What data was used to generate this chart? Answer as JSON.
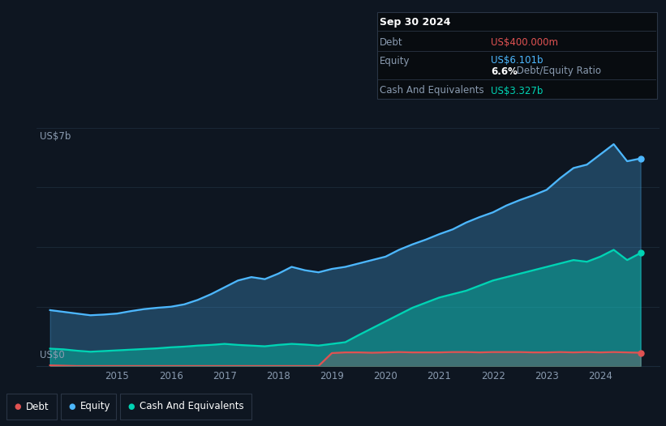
{
  "bg_color": "#0e1621",
  "plot_bg_color": "#0e1621",
  "grid_color": "#1c2b3a",
  "title_box": {
    "date": "Sep 30 2024",
    "debt_label": "Debt",
    "debt_value": "US$400.000m",
    "debt_color": "#e05252",
    "equity_label": "Equity",
    "equity_value": "US$6.101b",
    "equity_color": "#4db8ff",
    "ratio_bold": "6.6%",
    "ratio_rest": " Debt/Equity Ratio",
    "cash_label": "Cash And Equivalents",
    "cash_value": "US$3.327b",
    "cash_color": "#00d4b4",
    "box_bg": "#080c10",
    "label_color": "#8a9bb0",
    "white_color": "#ffffff",
    "divider_color": "#2a3545"
  },
  "ylabel_top": "US$7b",
  "ylabel_bot": "US$0",
  "legend": [
    "Debt",
    "Equity",
    "Cash And Equivalents"
  ],
  "debt_color": "#e05252",
  "equity_color": "#4db8ff",
  "cash_color": "#00d4b4",
  "equity_x": [
    2013.75,
    2014.0,
    2014.25,
    2014.5,
    2014.75,
    2015.0,
    2015.25,
    2015.5,
    2015.75,
    2016.0,
    2016.25,
    2016.5,
    2016.75,
    2017.0,
    2017.25,
    2017.5,
    2017.75,
    2018.0,
    2018.25,
    2018.5,
    2018.75,
    2019.0,
    2019.25,
    2019.5,
    2019.75,
    2020.0,
    2020.25,
    2020.5,
    2020.75,
    2021.0,
    2021.25,
    2021.5,
    2021.75,
    2022.0,
    2022.25,
    2022.5,
    2022.75,
    2023.0,
    2023.25,
    2023.5,
    2023.75,
    2024.0,
    2024.25,
    2024.5,
    2024.75
  ],
  "equity_y": [
    1.65,
    1.6,
    1.55,
    1.5,
    1.52,
    1.55,
    1.62,
    1.68,
    1.72,
    1.75,
    1.82,
    1.95,
    2.12,
    2.32,
    2.52,
    2.62,
    2.56,
    2.72,
    2.92,
    2.82,
    2.76,
    2.86,
    2.92,
    3.02,
    3.12,
    3.22,
    3.42,
    3.58,
    3.72,
    3.88,
    4.02,
    4.22,
    4.38,
    4.52,
    4.72,
    4.88,
    5.02,
    5.18,
    5.52,
    5.82,
    5.92,
    6.22,
    6.52,
    6.02,
    6.1
  ],
  "cash_x": [
    2013.75,
    2014.0,
    2014.25,
    2014.5,
    2014.75,
    2015.0,
    2015.25,
    2015.5,
    2015.75,
    2016.0,
    2016.25,
    2016.5,
    2016.75,
    2017.0,
    2017.25,
    2017.5,
    2017.75,
    2018.0,
    2018.25,
    2018.5,
    2018.75,
    2019.0,
    2019.25,
    2019.5,
    2019.75,
    2020.0,
    2020.25,
    2020.5,
    2020.75,
    2021.0,
    2021.25,
    2021.5,
    2021.75,
    2022.0,
    2022.25,
    2022.5,
    2022.75,
    2023.0,
    2023.25,
    2023.5,
    2023.75,
    2024.0,
    2024.25,
    2024.5,
    2024.75
  ],
  "cash_y": [
    0.52,
    0.5,
    0.46,
    0.43,
    0.45,
    0.47,
    0.49,
    0.51,
    0.53,
    0.56,
    0.58,
    0.61,
    0.63,
    0.66,
    0.63,
    0.61,
    0.59,
    0.63,
    0.66,
    0.64,
    0.61,
    0.66,
    0.71,
    0.92,
    1.12,
    1.32,
    1.52,
    1.72,
    1.87,
    2.02,
    2.12,
    2.22,
    2.37,
    2.52,
    2.62,
    2.72,
    2.82,
    2.92,
    3.02,
    3.12,
    3.07,
    3.22,
    3.42,
    3.12,
    3.327
  ],
  "debt_x": [
    2013.75,
    2014.0,
    2014.25,
    2014.5,
    2014.75,
    2015.0,
    2015.25,
    2015.5,
    2015.75,
    2016.0,
    2016.25,
    2016.5,
    2016.75,
    2017.0,
    2017.25,
    2017.5,
    2017.75,
    2018.0,
    2018.25,
    2018.5,
    2018.75,
    2019.0,
    2019.25,
    2019.5,
    2019.75,
    2020.0,
    2020.25,
    2020.5,
    2020.75,
    2021.0,
    2021.25,
    2021.5,
    2021.75,
    2022.0,
    2022.25,
    2022.5,
    2022.75,
    2023.0,
    2023.25,
    2023.5,
    2023.75,
    2024.0,
    2024.25,
    2024.5,
    2024.75
  ],
  "debt_y": [
    0.03,
    0.02,
    0.01,
    0.01,
    0.01,
    0.01,
    0.01,
    0.01,
    0.01,
    0.01,
    0.01,
    0.01,
    0.01,
    0.01,
    0.01,
    0.01,
    0.01,
    0.01,
    0.01,
    0.01,
    0.01,
    0.39,
    0.41,
    0.41,
    0.4,
    0.41,
    0.42,
    0.41,
    0.41,
    0.41,
    0.42,
    0.42,
    0.41,
    0.42,
    0.42,
    0.42,
    0.41,
    0.41,
    0.42,
    0.41,
    0.42,
    0.41,
    0.42,
    0.41,
    0.4
  ],
  "xlim": [
    2013.5,
    2025.1
  ],
  "ylim": [
    0.0,
    7.0
  ],
  "year_ticks": [
    2015,
    2016,
    2017,
    2018,
    2019,
    2020,
    2021,
    2022,
    2023,
    2024
  ]
}
